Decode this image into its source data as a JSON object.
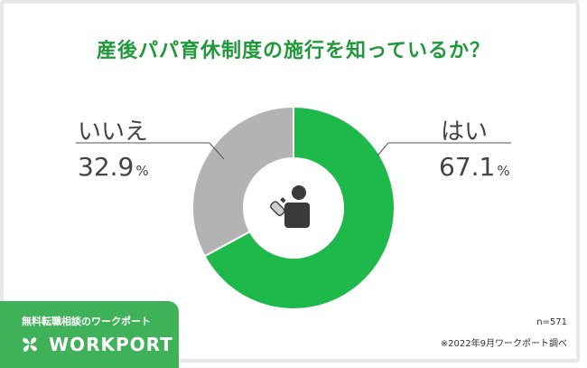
{
  "title": "産後パパ育休制度の施行を知っているか？",
  "chart_data": {
    "type": "pie",
    "donut": true,
    "categories": [
      "はい",
      "いいえ"
    ],
    "values": [
      67.1,
      32.9
    ],
    "value_labels": [
      "67.1",
      "32.9"
    ],
    "unit": "%",
    "colors": [
      "#1fb84a",
      "#b3b3b3"
    ],
    "center_icon": "parent-bottle-icon"
  },
  "labels": {
    "yes": {
      "category": "はい",
      "value": "67.1",
      "unit": "%"
    },
    "no": {
      "category": "いいえ",
      "value": "32.9",
      "unit": "%"
    }
  },
  "brand": {
    "tagline": "無料転職相談のワークポート",
    "name": "WORKPORT",
    "logo_icon": "clover-logo-icon",
    "color": "#3fb158"
  },
  "notes": {
    "sample": "n=571",
    "source": "※2022年9月ワークポート調べ"
  }
}
